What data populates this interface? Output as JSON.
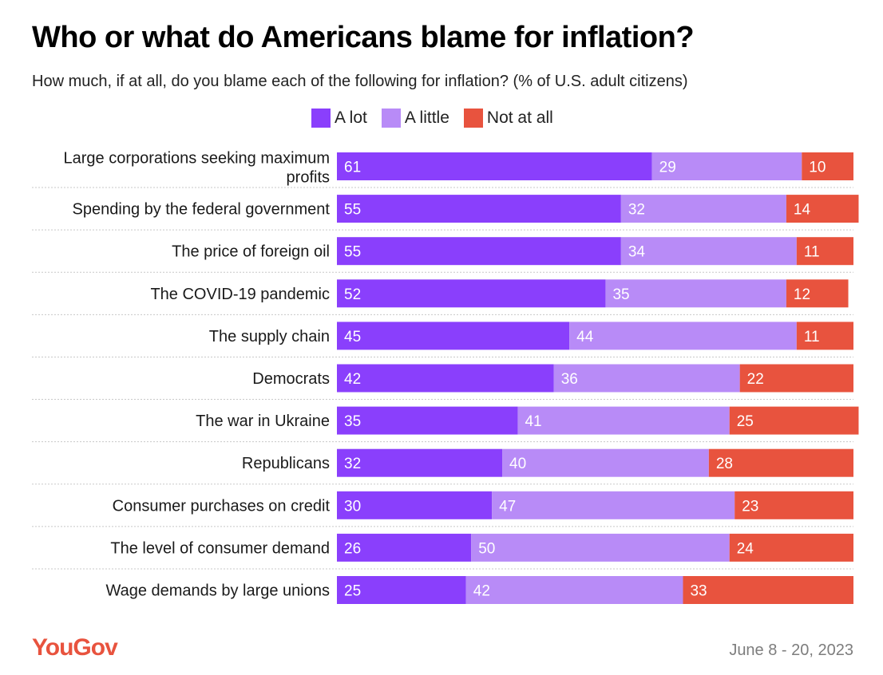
{
  "chart_data": {
    "type": "bar",
    "orientation": "horizontal",
    "stacked": true,
    "title": "Who or what do Americans blame for inflation?",
    "subtitle": "How much, if at all, do you blame each of the following for inflation? (% of U.S. adult citizens)",
    "categories": [
      [
        "Large corporations seeking maximum",
        "profits"
      ],
      [
        "Spending by the federal government"
      ],
      [
        "The price of foreign oil"
      ],
      [
        "The COVID-19 pandemic"
      ],
      [
        "The supply chain"
      ],
      [
        "Democrats"
      ],
      [
        "The war in Ukraine"
      ],
      [
        "Republicans"
      ],
      [
        "Consumer purchases on credit"
      ],
      [
        "The level of consumer demand"
      ],
      [
        "Wage demands by large unions"
      ]
    ],
    "series": [
      {
        "name": "A lot",
        "color": "#8a3ffc",
        "values": [
          61,
          55,
          55,
          52,
          45,
          42,
          35,
          32,
          30,
          26,
          25
        ]
      },
      {
        "name": "A little",
        "color": "#b88bf7",
        "values": [
          29,
          32,
          34,
          35,
          44,
          36,
          41,
          40,
          47,
          50,
          42
        ]
      },
      {
        "name": "Not at all",
        "color": "#e8533e",
        "values": [
          10,
          14,
          11,
          12,
          11,
          22,
          25,
          28,
          23,
          24,
          33
        ]
      }
    ],
    "xlim": [
      0,
      100
    ],
    "legend_position": "top"
  },
  "footer": {
    "brand": "YouGov",
    "date": "June 8 - 20, 2023",
    "brand_color": "#e8533e"
  }
}
